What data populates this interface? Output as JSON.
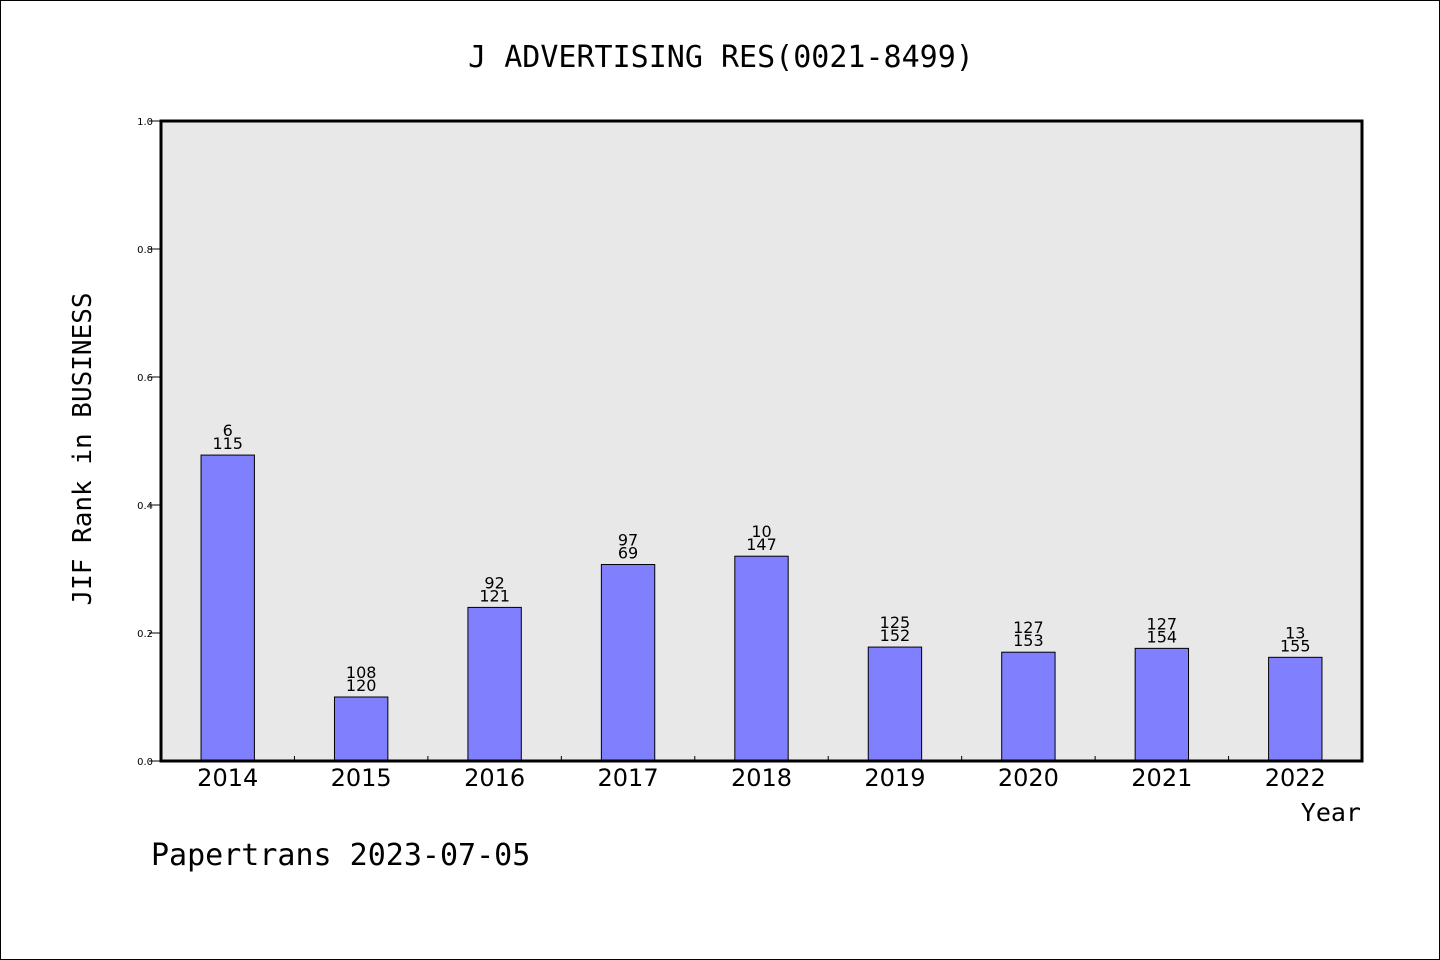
{
  "colors": {
    "plot_background": "#e8e8e8",
    "bar_fill": "#8080ff",
    "bar_stroke": "#000000",
    "frame": "#000000"
  },
  "footer": {
    "text": "Papertrans 2023-07-05"
  },
  "chart_data": {
    "type": "bar",
    "title": "J ADVERTISING RES(0021-8499)",
    "xlabel": "Year",
    "ylabel": "JIF Rank in BUSINESS",
    "ylim": [
      0,
      1.0
    ],
    "yticks": [
      "0.0",
      "0.2",
      "0.4",
      "0.6",
      "0.8",
      "1.0"
    ],
    "grid": false,
    "categories": [
      "2014",
      "2015",
      "2016",
      "2017",
      "2018",
      "2019",
      "2020",
      "2021",
      "2022"
    ],
    "values": [
      0.478,
      0.1,
      0.24,
      0.307,
      0.32,
      0.178,
      0.17,
      0.176,
      0.162
    ],
    "labels_top": [
      "6",
      "108",
      "92",
      "97",
      "10",
      "125",
      "127",
      "127",
      "13"
    ],
    "labels_bottom": [
      "115",
      "120",
      "121",
      "69",
      "147",
      "152",
      "153",
      "154",
      "155"
    ]
  }
}
